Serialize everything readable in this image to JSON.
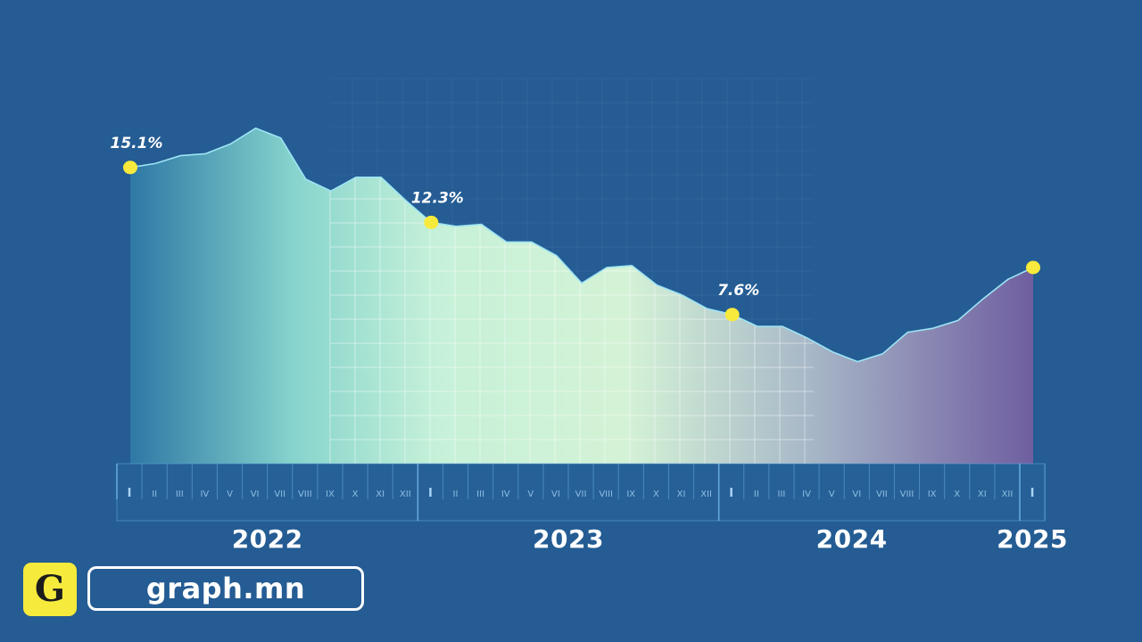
{
  "chart_data": {
    "type": "area",
    "ylim": [
      0,
      20
    ],
    "x_month_labels": [
      "I",
      "II",
      "III",
      "IV",
      "V",
      "VI",
      "VII",
      "VIII",
      "IX",
      "X",
      "XI",
      "XII",
      "I",
      "II",
      "III",
      "IV",
      "V",
      "VI",
      "VII",
      "VIII",
      "IX",
      "X",
      "XI",
      "XII",
      "I",
      "II",
      "III",
      "IV",
      "V",
      "VI",
      "VII",
      "VIII",
      "IX",
      "X",
      "XI",
      "XII",
      "I"
    ],
    "year_labels": [
      {
        "label": "2022",
        "at_index": 5.5
      },
      {
        "label": "2023",
        "at_index": 17.5
      },
      {
        "label": "2024",
        "at_index": 28.8
      },
      {
        "label": "2025",
        "at_index": 36
      }
    ],
    "series": [
      {
        "values": [
          15.1,
          15.3,
          15.7,
          15.8,
          16.3,
          17.1,
          16.6,
          14.5,
          13.9,
          14.6,
          14.6,
          13.4,
          12.3,
          12.1,
          12.2,
          11.3,
          11.3,
          10.6,
          9.2,
          10.0,
          10.1,
          9.1,
          8.6,
          7.9,
          7.6,
          7.0,
          7.0,
          6.4,
          5.7,
          5.2,
          5.6,
          6.7,
          6.9,
          7.3,
          8.4,
          9.4,
          10.0
        ]
      }
    ],
    "annotations": [
      {
        "index": 0,
        "text": "15.1%"
      },
      {
        "index": 12,
        "text": "12.3%"
      },
      {
        "index": 24,
        "text": "7.6%"
      }
    ],
    "marker_indices": [
      0,
      12,
      24,
      36
    ],
    "colors": {
      "background": "#245c93",
      "area_start": "#2e7aa6",
      "area_mid": "#c8f0d8",
      "area_end": "#6f5ea0",
      "line": "#9de4f5",
      "marker": "#f8ea3c"
    }
  },
  "brand": {
    "logo_letter": "G",
    "name": "graph.mn"
  }
}
